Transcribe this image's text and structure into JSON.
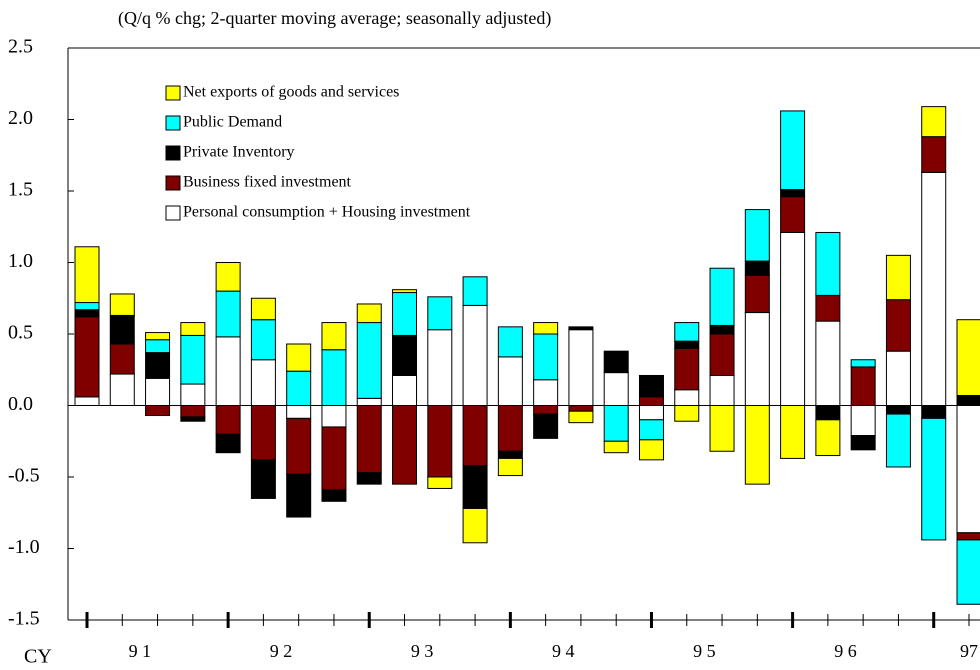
{
  "chart_data": {
    "type": "stacked-bar",
    "subtitle": "(Q/q % chg; 2-quarter moving average; seasonally adjusted)",
    "x_label": "CY",
    "categories": [
      null,
      "9 1",
      null,
      null,
      null,
      "9 2",
      null,
      null,
      null,
      "9 3",
      null,
      null,
      null,
      "9 4",
      null,
      null,
      null,
      "9 5",
      null,
      null,
      null,
      "9 6",
      null,
      null,
      null,
      "97"
    ],
    "series": [
      {
        "name": "Personal consumption + Housing investment",
        "color": "#ffffff",
        "values": [
          0.06,
          0.22,
          0.19,
          0.15,
          0.48,
          0.32,
          -0.09,
          -0.15,
          0.05,
          0.21,
          0.53,
          0.7,
          0.34,
          0.18,
          0.53,
          0.23,
          -0.1,
          0.11,
          0.21,
          0.65,
          1.21,
          0.59,
          -0.21,
          0.38,
          1.63,
          -0.89
        ]
      },
      {
        "name": "Business fixed investment",
        "color": "#800000",
        "values": [
          0.56,
          0.21,
          -0.07,
          -0.08,
          -0.2,
          -0.38,
          -0.39,
          -0.44,
          -0.47,
          -0.55,
          -0.5,
          -0.42,
          -0.32,
          -0.06,
          -0.04,
          0,
          0.06,
          0.29,
          0.29,
          0.26,
          0.25,
          0.18,
          0.27,
          0.36,
          0.25,
          -0.05
        ]
      },
      {
        "name": "Private Inventory",
        "color": "#000000",
        "values": [
          0.05,
          0.2,
          0.18,
          -0.03,
          -0.13,
          -0.27,
          -0.3,
          -0.08,
          -0.08,
          0.28,
          0,
          -0.3,
          -0.05,
          -0.17,
          0.02,
          0.15,
          0.15,
          0.05,
          0.06,
          0.1,
          0.05,
          -0.1,
          -0.1,
          -0.06,
          -0.09,
          0.07
        ]
      },
      {
        "name": "Public Demand",
        "color": "#00ffff",
        "values": [
          0.05,
          0,
          0.09,
          0.34,
          0.32,
          0.28,
          0.24,
          0.39,
          0.53,
          0.3,
          0.23,
          0.2,
          0.21,
          0.32,
          0,
          -0.25,
          -0.14,
          0.13,
          0.4,
          0.36,
          0.55,
          0.44,
          0.05,
          -0.37,
          -0.85,
          -0.45
        ]
      },
      {
        "name": "Net exports of goods and services",
        "color": "#ffff00",
        "values": [
          0.39,
          0.15,
          0.05,
          0.09,
          0.2,
          0.15,
          0.19,
          0.19,
          0.13,
          0.02,
          -0.08,
          -0.24,
          -0.12,
          0.08,
          -0.08,
          -0.08,
          -0.14,
          -0.11,
          -0.32,
          -0.55,
          -0.37,
          -0.25,
          0,
          0.31,
          0.21,
          0.53
        ]
      }
    ],
    "ylim": [
      -1.5,
      2.5
    ],
    "yticks": [
      -1.5,
      {
        "value": -1,
        "label": "-1.0"
      },
      -0.5,
      {
        "value": 0,
        "label": "0.0"
      },
      0.5,
      {
        "value": 1,
        "label": "1.0"
      },
      1.5,
      {
        "value": 2,
        "label": "2.0"
      },
      2.5
    ]
  }
}
